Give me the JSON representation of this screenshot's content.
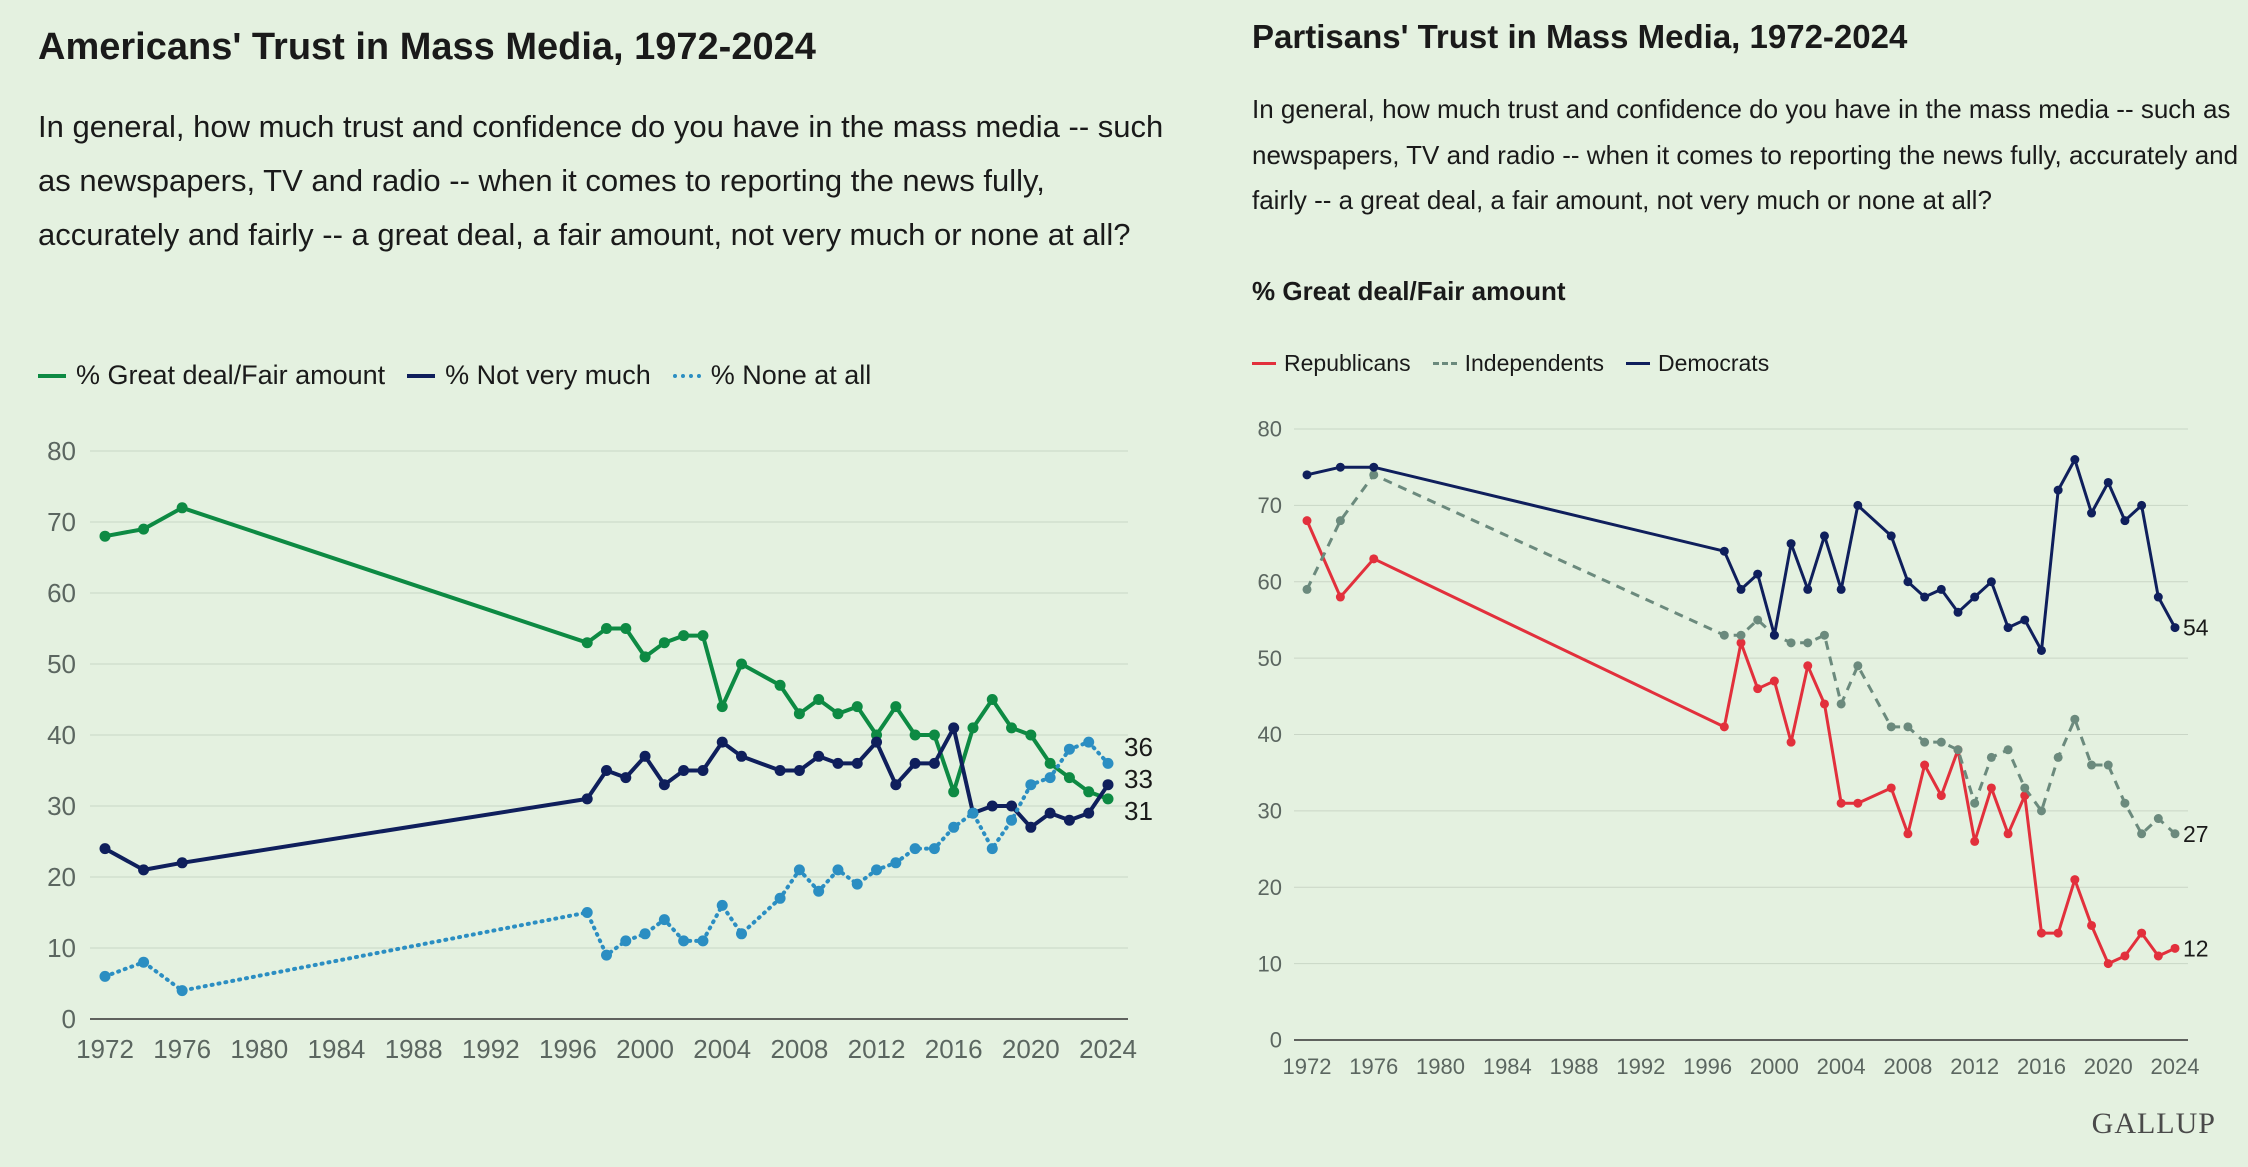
{
  "source": "GALLUP",
  "colors": {
    "green": "#0d8a43",
    "navy": "#0f1f5c",
    "lightblue": "#2b8ec2",
    "red": "#e2303c",
    "gray": "#6b8a7d",
    "grid": "#c9d6c6"
  },
  "chart_data": [
    {
      "type": "line",
      "title": "Americans' Trust in Mass Media, 1972-2024",
      "question": "In general, how much trust and confidence do you have in the mass media -- such as newspapers, TV and radio -- when it comes to reporting the news fully, accurately and fairly -- a great deal, a fair amount, not very much or none at all?",
      "xlabel": "",
      "ylabel": "",
      "xlim": [
        1972,
        2024
      ],
      "ylim": [
        0,
        80
      ],
      "yticks": [
        0,
        10,
        20,
        30,
        40,
        50,
        60,
        70,
        80
      ],
      "xticks": [
        1972,
        1976,
        1980,
        1984,
        1988,
        1992,
        1996,
        2000,
        2004,
        2008,
        2012,
        2016,
        2020,
        2024
      ],
      "grid": true,
      "legend_position": "top-left",
      "series": [
        {
          "name": "% Great deal/Fair amount",
          "color_key": "green",
          "style": "solid",
          "end_label": "31",
          "x": [
            1972,
            1974,
            1976,
            1997,
            1998,
            1999,
            2000,
            2001,
            2002,
            2003,
            2004,
            2005,
            2007,
            2008,
            2009,
            2010,
            2011,
            2012,
            2013,
            2014,
            2015,
            2016,
            2017,
            2018,
            2019,
            2020,
            2021,
            2022,
            2023,
            2024
          ],
          "y": [
            68,
            69,
            72,
            53,
            55,
            55,
            51,
            53,
            54,
            54,
            44,
            50,
            47,
            43,
            45,
            43,
            44,
            40,
            44,
            40,
            40,
            32,
            41,
            45,
            41,
            40,
            36,
            34,
            32,
            31
          ]
        },
        {
          "name": "% Not very much",
          "color_key": "navy",
          "style": "solid",
          "end_label": "33",
          "x": [
            1972,
            1974,
            1976,
            1997,
            1998,
            1999,
            2000,
            2001,
            2002,
            2003,
            2004,
            2005,
            2007,
            2008,
            2009,
            2010,
            2011,
            2012,
            2013,
            2014,
            2015,
            2016,
            2017,
            2018,
            2019,
            2020,
            2021,
            2022,
            2023,
            2024
          ],
          "y": [
            24,
            21,
            22,
            31,
            35,
            34,
            37,
            33,
            35,
            35,
            39,
            37,
            35,
            35,
            37,
            36,
            36,
            39,
            33,
            36,
            36,
            41,
            29,
            30,
            30,
            27,
            29,
            28,
            29,
            33
          ]
        },
        {
          "name": "% None at all",
          "color_key": "lightblue",
          "style": "dotted",
          "end_label": "36",
          "x": [
            1972,
            1974,
            1976,
            1997,
            1998,
            1999,
            2000,
            2001,
            2002,
            2003,
            2004,
            2005,
            2007,
            2008,
            2009,
            2010,
            2011,
            2012,
            2013,
            2014,
            2015,
            2016,
            2017,
            2018,
            2019,
            2020,
            2021,
            2022,
            2023,
            2024
          ],
          "y": [
            6,
            8,
            4,
            15,
            9,
            11,
            12,
            14,
            11,
            11,
            16,
            12,
            17,
            21,
            18,
            21,
            19,
            21,
            22,
            24,
            24,
            27,
            29,
            24,
            28,
            33,
            34,
            38,
            39,
            36
          ]
        }
      ]
    },
    {
      "type": "line",
      "title": "Partisans' Trust in Mass Media, 1972-2024",
      "question": "In general, how much trust and confidence do you have in the mass media -- such as newspapers, TV and radio -- when it comes to reporting the news fully, accurately and fairly -- a great deal, a fair amount, not very much or none at all?",
      "subtitle": "% Great deal/Fair amount",
      "xlabel": "",
      "ylabel": "",
      "xlim": [
        1972,
        2024
      ],
      "ylim": [
        0,
        80
      ],
      "yticks": [
        0,
        10,
        20,
        30,
        40,
        50,
        60,
        70,
        80
      ],
      "xticks": [
        1972,
        1976,
        1980,
        1984,
        1988,
        1992,
        1996,
        2000,
        2004,
        2008,
        2012,
        2016,
        2020,
        2024
      ],
      "grid": true,
      "legend_position": "top-left",
      "series": [
        {
          "name": "Republicans",
          "color_key": "red",
          "style": "solid",
          "end_label": "12",
          "x": [
            1972,
            1974,
            1976,
            1997,
            1998,
            1999,
            2000,
            2001,
            2002,
            2003,
            2004,
            2005,
            2007,
            2008,
            2009,
            2010,
            2011,
            2012,
            2013,
            2014,
            2015,
            2016,
            2017,
            2018,
            2019,
            2020,
            2021,
            2022,
            2023,
            2024
          ],
          "y": [
            68,
            58,
            63,
            41,
            52,
            46,
            47,
            39,
            49,
            44,
            31,
            31,
            33,
            27,
            36,
            32,
            38,
            26,
            33,
            27,
            32,
            14,
            14,
            21,
            15,
            10,
            11,
            14,
            11,
            12
          ]
        },
        {
          "name": "Independents",
          "color_key": "gray",
          "style": "dashed",
          "end_label": "27",
          "x": [
            1972,
            1974,
            1976,
            1997,
            1998,
            1999,
            2000,
            2001,
            2002,
            2003,
            2004,
            2005,
            2007,
            2008,
            2009,
            2010,
            2011,
            2012,
            2013,
            2014,
            2015,
            2016,
            2017,
            2018,
            2019,
            2020,
            2021,
            2022,
            2023,
            2024
          ],
          "y": [
            59,
            68,
            74,
            53,
            53,
            55,
            53,
            52,
            52,
            53,
            44,
            49,
            41,
            41,
            39,
            39,
            38,
            31,
            37,
            38,
            33,
            30,
            37,
            42,
            36,
            36,
            31,
            27,
            29,
            27
          ]
        },
        {
          "name": "Democrats",
          "color_key": "navy",
          "style": "solid",
          "end_label": "54",
          "x": [
            1972,
            1974,
            1976,
            1997,
            1998,
            1999,
            2000,
            2001,
            2002,
            2003,
            2004,
            2005,
            2007,
            2008,
            2009,
            2010,
            2011,
            2012,
            2013,
            2014,
            2015,
            2016,
            2017,
            2018,
            2019,
            2020,
            2021,
            2022,
            2023,
            2024
          ],
          "y": [
            74,
            75,
            75,
            64,
            59,
            61,
            53,
            65,
            59,
            66,
            59,
            70,
            66,
            60,
            58,
            59,
            56,
            58,
            60,
            54,
            55,
            51,
            72,
            76,
            69,
            73,
            68,
            70,
            58,
            54
          ]
        }
      ]
    }
  ]
}
